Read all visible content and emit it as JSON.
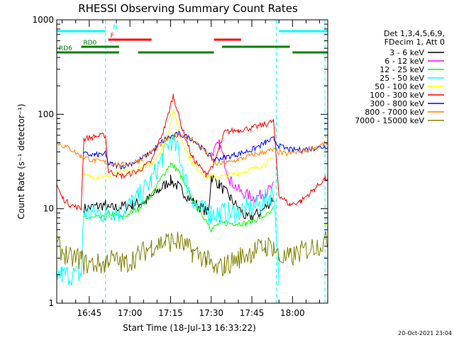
{
  "chart_data": {
    "type": "line",
    "title": "RHESSI Observing Summary Count Rates",
    "xlabel": "Start Time (18-Jul-13 16:33:22)",
    "ylabel": "Count Rate (s⁻¹ detector⁻¹)",
    "yscale": "log",
    "ylim": [
      1,
      1000
    ],
    "xlim_minutes": [
      0,
      100
    ],
    "x_tick_labels": [
      {
        "t": 12,
        "label": "16:45"
      },
      {
        "t": 27,
        "label": "17:00"
      },
      {
        "t": 42,
        "label": "17:15"
      },
      {
        "t": 57,
        "label": "17:30"
      },
      {
        "t": 72,
        "label": "17:45"
      },
      {
        "t": 87,
        "label": "18:00"
      }
    ],
    "y_tick_labels": [
      {
        "v": 1,
        "label": "1"
      },
      {
        "v": 10,
        "label": "10"
      },
      {
        "v": 100,
        "label": "100"
      },
      {
        "v": 1000,
        "label": "1000"
      }
    ],
    "legend_header": [
      "Det 1,3,4,5,6,9,",
      "FDecim 1, Att 0"
    ],
    "legend_placement": "right",
    "footer": "20-Oct-2021 23:04",
    "flags": [
      {
        "label": "N",
        "color": "#00ffff",
        "segments": [
          [
            0,
            18
          ],
          [
            82,
            100
          ]
        ],
        "level": 0.96
      },
      {
        "label": "F",
        "color": "#ff0000",
        "segments": [
          [
            19,
            35
          ],
          [
            58,
            68
          ]
        ],
        "level": 0.93
      },
      {
        "label": "RD0",
        "color": "#008000",
        "segments": [
          [
            9,
            23
          ],
          [
            61,
            86
          ]
        ],
        "level": 0.905
      },
      {
        "label": "RD6",
        "color": "#008000",
        "segments": [
          [
            0,
            23
          ],
          [
            30,
            58
          ],
          [
            87,
            100
          ]
        ],
        "level": 0.885
      }
    ],
    "night_marks": [
      18,
      81,
      99
    ],
    "series": [
      {
        "name": "3 - 6 keV",
        "color": "#000000",
        "x": [
          0,
          9,
          10,
          18,
          19,
          28,
          33,
          38,
          42,
          45,
          50,
          56,
          57,
          60,
          64,
          70,
          75,
          79,
          80,
          82
        ],
        "values": [
          null,
          null,
          10,
          11,
          10,
          11,
          12,
          16,
          20,
          17,
          12,
          9,
          22,
          18,
          13,
          8,
          9,
          12,
          13,
          null
        ]
      },
      {
        "name": "6 - 12 keV",
        "color": "#ff00ff",
        "x": [
          57,
          60,
          64,
          68,
          73,
          77,
          80,
          82
        ],
        "values": [
          38,
          48,
          20,
          15,
          13,
          15,
          17,
          null
        ]
      },
      {
        "name": "12 - 25 keV",
        "color": "#00ff00",
        "x": [
          0,
          9,
          10,
          18,
          19,
          24,
          30,
          35,
          39,
          42,
          45,
          48,
          52,
          56,
          57,
          60,
          65,
          70,
          75,
          79,
          80,
          82
        ],
        "values": [
          null,
          null,
          8,
          8,
          9,
          8,
          10,
          14,
          22,
          30,
          25,
          16,
          10,
          7,
          6,
          7,
          7,
          7,
          8,
          9,
          10,
          null
        ]
      },
      {
        "name": "25 - 50 keV",
        "color": "#00ffff",
        "x": [
          0,
          2,
          9,
          10,
          18,
          19,
          23,
          30,
          35,
          39,
          42,
          45,
          48,
          52,
          56,
          57,
          60,
          65,
          70,
          75,
          79,
          80,
          82
        ],
        "values": [
          2,
          2,
          2,
          9,
          9,
          10,
          9,
          13,
          20,
          35,
          55,
          40,
          18,
          10,
          9,
          9,
          9,
          9,
          10,
          11,
          14,
          16,
          2
        ]
      },
      {
        "name": "50 - 100 keV",
        "color": "#ffff00",
        "x": [
          0,
          9,
          10,
          18,
          19,
          24,
          30,
          35,
          40,
          43,
          46,
          50,
          55,
          58,
          62,
          67,
          72,
          77,
          80,
          82,
          85,
          90,
          96,
          99,
          100
        ],
        "values": [
          null,
          null,
          22,
          22,
          22,
          24,
          26,
          30,
          48,
          110,
          55,
          30,
          22,
          22,
          22,
          24,
          26,
          30,
          34,
          null,
          null,
          null,
          null,
          7,
          7
        ]
      },
      {
        "name": "100 - 300 keV",
        "color": "#ff0000",
        "x": [
          0,
          2,
          5,
          9,
          10,
          14,
          18,
          19,
          24,
          30,
          35,
          40,
          43,
          46,
          50,
          55,
          58,
          62,
          67,
          72,
          77,
          80,
          82,
          86,
          90,
          95,
          99,
          100
        ],
        "values": [
          18,
          13,
          11,
          10,
          55,
          58,
          60,
          25,
          22,
          25,
          32,
          75,
          160,
          75,
          35,
          23,
          30,
          65,
          68,
          72,
          78,
          85,
          14,
          11,
          12,
          16,
          21,
          20
        ]
      },
      {
        "name": "300 - 800 keV",
        "color": "#0000ff",
        "x": [
          10,
          14,
          18,
          19,
          24,
          30,
          35,
          40,
          45,
          50,
          55,
          58,
          62,
          67,
          72,
          77,
          80,
          82,
          86,
          90,
          95,
          100
        ],
        "values": [
          38,
          37,
          38,
          30,
          28,
          32,
          40,
          55,
          62,
          55,
          40,
          33,
          35,
          38,
          42,
          50,
          55,
          46,
          42,
          42,
          44,
          46
        ]
      },
      {
        "name": "800 - 7000 keV",
        "color": "#ff8000",
        "x": [
          0,
          5,
          9,
          14,
          18,
          24,
          30,
          35,
          40,
          45,
          50,
          55,
          58,
          62,
          67,
          72,
          77,
          80,
          84,
          90,
          96,
          100
        ],
        "values": [
          50,
          43,
          36,
          32,
          31,
          29,
          32,
          40,
          52,
          62,
          55,
          40,
          30,
          30,
          33,
          37,
          40,
          42,
          38,
          40,
          45,
          50
        ]
      },
      {
        "name": "7000 - 15000 keV",
        "color": "#808000",
        "x": [
          0,
          5,
          9,
          10,
          18,
          19,
          25,
          30,
          35,
          40,
          45,
          50,
          55,
          58,
          62,
          67,
          72,
          77,
          80,
          82,
          86,
          90,
          95,
          100
        ],
        "values": [
          4,
          3,
          3,
          2.6,
          2.6,
          3,
          2.6,
          3.2,
          4,
          4.5,
          4.5,
          3.5,
          3,
          2.2,
          2.5,
          3,
          3.5,
          4,
          4,
          3,
          3,
          3.5,
          4,
          4.5
        ]
      }
    ]
  }
}
